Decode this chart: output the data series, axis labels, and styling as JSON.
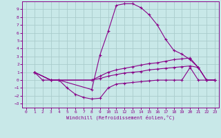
{
  "background_color": "#c8e8e8",
  "grid_color": "#b0d0d0",
  "line_color": "#880088",
  "xlabel": "Windchill (Refroidissement éolien,°C)",
  "xlim": [
    -0.5,
    23.5
  ],
  "ylim": [
    -3.5,
    10.0
  ],
  "xticks": [
    0,
    1,
    2,
    3,
    4,
    5,
    6,
    7,
    8,
    9,
    10,
    11,
    12,
    13,
    14,
    15,
    16,
    17,
    18,
    19,
    20,
    21,
    22,
    23
  ],
  "yticks": [
    -3,
    -2,
    -1,
    0,
    1,
    2,
    3,
    4,
    5,
    6,
    7,
    8,
    9
  ],
  "lines": [
    {
      "x": [
        1,
        2,
        3,
        4,
        8,
        9,
        10,
        11,
        12,
        13,
        14,
        15,
        16,
        17,
        18,
        19,
        20,
        21,
        22,
        23
      ],
      "y": [
        1.0,
        0.0,
        0.0,
        0.0,
        -1.2,
        3.2,
        6.2,
        9.5,
        9.7,
        9.7,
        9.2,
        8.3,
        7.0,
        5.2,
        3.8,
        3.3,
        2.6,
        1.6,
        0.0,
        0.0
      ]
    },
    {
      "x": [
        1,
        3,
        4,
        5,
        6,
        7,
        8,
        9,
        10,
        11,
        12,
        13,
        14,
        15,
        16,
        17,
        18,
        19,
        20,
        21,
        22,
        23
      ],
      "y": [
        1.0,
        0.0,
        0.0,
        -1.0,
        -1.8,
        -2.2,
        -2.4,
        -2.3,
        -1.0,
        -0.5,
        -0.4,
        -0.3,
        -0.2,
        -0.1,
        0.0,
        0.0,
        0.0,
        0.0,
        1.6,
        0.0,
        0.0,
        0.0
      ]
    },
    {
      "x": [
        1,
        3,
        8,
        9,
        10,
        11,
        12,
        13,
        14,
        15,
        16,
        17,
        18,
        19,
        20,
        21,
        22,
        23
      ],
      "y": [
        1.0,
        0.0,
        0.0,
        0.5,
        1.0,
        1.3,
        1.5,
        1.7,
        1.9,
        2.1,
        2.2,
        2.4,
        2.6,
        2.7,
        2.8,
        1.6,
        0.0,
        0.0
      ]
    },
    {
      "x": [
        1,
        3,
        8,
        9,
        10,
        11,
        12,
        13,
        14,
        15,
        16,
        17,
        18,
        19,
        20,
        21,
        22,
        23
      ],
      "y": [
        1.0,
        0.0,
        0.0,
        0.2,
        0.5,
        0.7,
        0.9,
        1.0,
        1.1,
        1.3,
        1.4,
        1.5,
        1.6,
        1.7,
        1.8,
        1.6,
        0.0,
        0.0
      ]
    }
  ]
}
